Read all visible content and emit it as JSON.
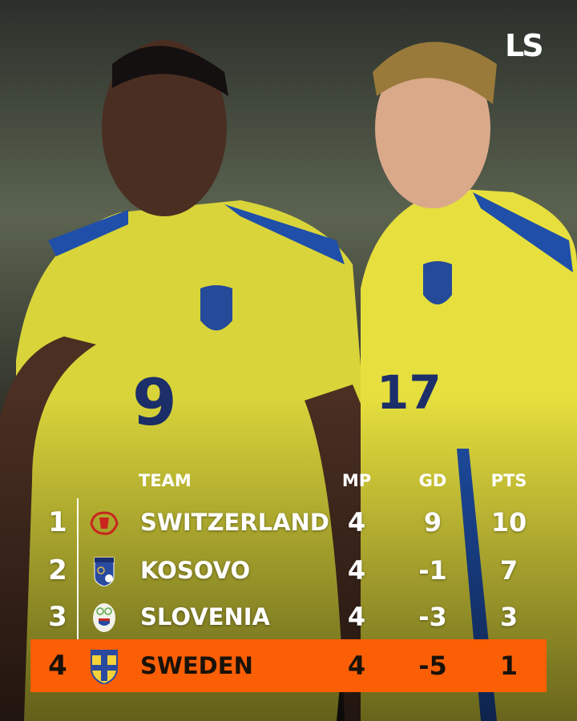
{
  "brand": {
    "logo_text": "LS"
  },
  "table": {
    "headers": {
      "team": "TEAM",
      "mp": "MP",
      "gd": "GD",
      "pts": "PTS"
    },
    "rows": [
      {
        "rank": "1",
        "team": "SWITZERLAND",
        "mp": "4",
        "gd": "9",
        "pts": "10",
        "crest": "switzerland-crest-icon"
      },
      {
        "rank": "2",
        "team": "KOSOVO",
        "mp": "4",
        "gd": "-1",
        "pts": "7",
        "crest": "kosovo-crest-icon"
      },
      {
        "rank": "3",
        "team": "SLOVENIA",
        "mp": "4",
        "gd": "-3",
        "pts": "3",
        "crest": "slovenia-crest-icon"
      },
      {
        "rank": "4",
        "team": "SWEDEN",
        "mp": "4",
        "gd": "-5",
        "pts": "1",
        "crest": "sweden-crest-icon",
        "highlighted": true
      }
    ]
  },
  "colors": {
    "highlight": "#fb5f06",
    "jersey": "#e3dc3a",
    "stripe": "#1f4fa8"
  }
}
